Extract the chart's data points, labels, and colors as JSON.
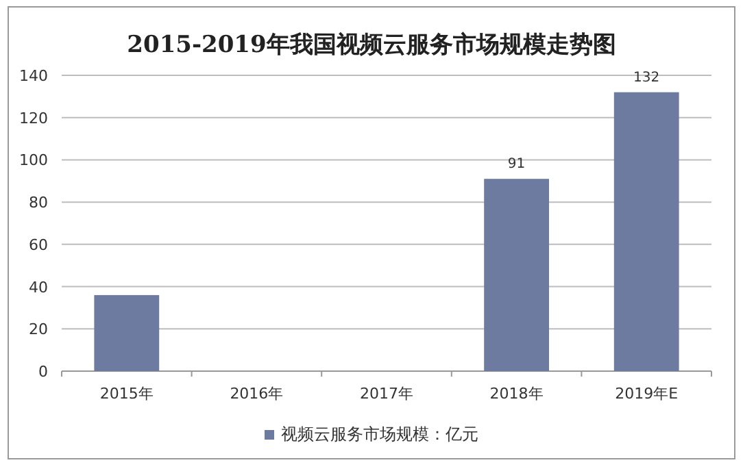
{
  "chart_data": {
    "type": "bar",
    "title": "2015-2019年我国视频云服务市场规模走势图",
    "categories": [
      "2015年",
      "2016年",
      "2017年",
      "2018年",
      "2019年E"
    ],
    "series": [
      {
        "name": "视频云服务市场规模：亿元",
        "color": "#6e7ba0",
        "values": [
          36,
          null,
          null,
          91,
          132
        ],
        "value_labels": [
          null,
          null,
          null,
          "91",
          "132"
        ]
      }
    ],
    "ylim": [
      0,
      140
    ],
    "yticks": [
      0,
      20,
      40,
      60,
      80,
      100,
      120,
      140
    ],
    "grid": "y",
    "legend": "bottom"
  }
}
